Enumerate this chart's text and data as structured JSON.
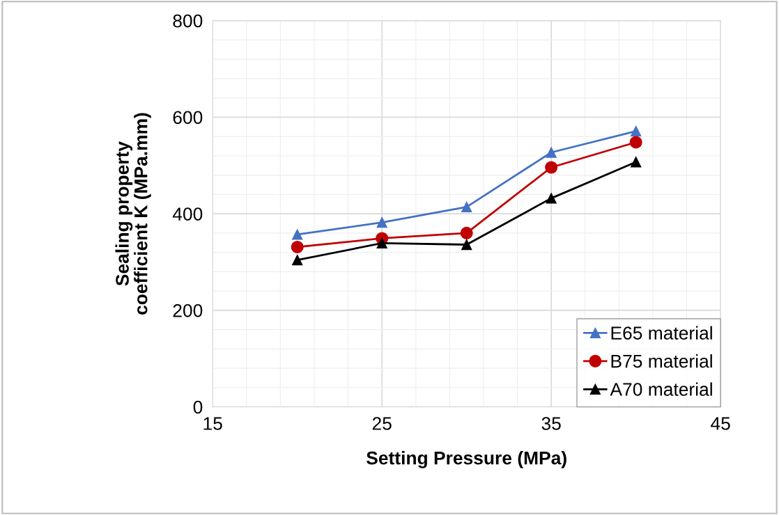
{
  "chart_data": {
    "type": "line",
    "xlabel": "Setting Pressure (MPa)",
    "ylabel": "Sealing property\ncoefficient K (MPa.mm)",
    "x": [
      20,
      25,
      30,
      35,
      40
    ],
    "series": [
      {
        "name": "E65 material",
        "color": "#4472c4",
        "marker": "triangle",
        "values": [
          357,
          382,
          414,
          527,
          571
        ]
      },
      {
        "name": "B75 material",
        "color": "#c00000",
        "marker": "circle",
        "values": [
          331,
          349,
          360,
          496,
          548
        ]
      },
      {
        "name": "A70 material",
        "color": "#000000",
        "marker": "triangle",
        "values": [
          304,
          339,
          336,
          432,
          507
        ]
      }
    ],
    "xlim": [
      15,
      45
    ],
    "xticks": [
      15,
      25,
      35,
      45
    ],
    "ylim": [
      0,
      800
    ],
    "yticks": [
      0,
      200,
      400,
      600,
      800
    ],
    "grid": true,
    "legend": "bottom right",
    "line_style": "solid"
  }
}
